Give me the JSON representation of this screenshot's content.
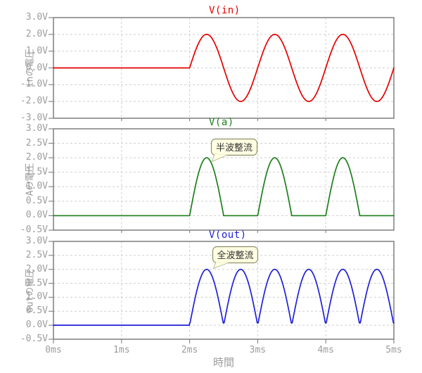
{
  "figure": {
    "background": "#ffffff",
    "frame_color": "#7f7f7f",
    "grid_color": "#cfcfcf",
    "tick_label_color": "#9c9c9c",
    "xlabel": "時間",
    "xticks": [
      "0ms",
      "1ms",
      "2ms",
      "3ms",
      "4ms",
      "5ms"
    ],
    "x_range_ms": [
      0,
      5
    ]
  },
  "annotation_style": {
    "background": "#ffffe2",
    "border": "#8f8f6b",
    "text_color": "#333333"
  },
  "chart_data": [
    {
      "type": "line",
      "title": "V(in)",
      "color": "#e60000",
      "ylabel": "inの電圧",
      "xlabel": "時間",
      "x_range_ms": [
        0,
        5
      ],
      "ylim": [
        -3.0,
        3.0
      ],
      "grid": true,
      "yticks": [
        {
          "v": 3.0,
          "label": "3.0V"
        },
        {
          "v": 2.0,
          "label": "2.0V"
        },
        {
          "v": 1.0,
          "label": "1.0V"
        },
        {
          "v": 0.0,
          "label": "0.0V"
        },
        {
          "v": -1.0,
          "label": "-1.0V"
        },
        {
          "v": -2.0,
          "label": "-2.0V"
        },
        {
          "v": -3.0,
          "label": "-3.0V"
        }
      ],
      "signal": {
        "kind": "sine",
        "description": "0V from 0ms to 2ms, then 2V-amplitude 1kHz sine (peaks +2V at 2.25/3.25/4.25ms, -2V at 2.75/3.75/4.75ms, 0V at 5ms)",
        "baseline_v": 0.0,
        "amplitude_v": 2.0,
        "period_ms": 1.0,
        "start_ms": 2.0
      },
      "annotation": null
    },
    {
      "type": "line",
      "title": "V(a)",
      "color": "#1e7e1e",
      "ylabel": "Aの電圧",
      "xlabel": "時間",
      "x_range_ms": [
        0,
        5
      ],
      "ylim": [
        -0.5,
        3.0
      ],
      "grid": true,
      "yticks": [
        {
          "v": 3.0,
          "label": "3.0V"
        },
        {
          "v": 2.5,
          "label": "2.5V"
        },
        {
          "v": 2.0,
          "label": "2.0V"
        },
        {
          "v": 1.5,
          "label": "1.5V"
        },
        {
          "v": 1.0,
          "label": "1.0V"
        },
        {
          "v": 0.5,
          "label": "0.5V"
        },
        {
          "v": 0.0,
          "label": "0.0V"
        },
        {
          "v": -0.5,
          "label": "-0.5V"
        }
      ],
      "signal": {
        "kind": "half_wave_rectified_sine",
        "description": "0V until 2ms, then half-wave rectified 2V sine: 2V-peak humps at 2.0-2.5, 3.0-3.5, 4.0-4.5ms, 0V between",
        "baseline_v": 0.0,
        "amplitude_v": 2.0,
        "period_ms": 1.0,
        "start_ms": 2.0
      },
      "annotation": {
        "text": "半波整流"
      }
    },
    {
      "type": "line",
      "title": "V(out)",
      "color": "#2020d8",
      "ylabel": "outの電圧",
      "xlabel": "時間",
      "x_range_ms": [
        0,
        5
      ],
      "ylim": [
        -0.5,
        3.0
      ],
      "grid": true,
      "yticks": [
        {
          "v": 3.0,
          "label": "3.0V"
        },
        {
          "v": 2.5,
          "label": "2.5V"
        },
        {
          "v": 2.0,
          "label": "2.0V"
        },
        {
          "v": 1.5,
          "label": "1.5V"
        },
        {
          "v": 1.0,
          "label": "1.0V"
        },
        {
          "v": 0.5,
          "label": "0.5V"
        },
        {
          "v": 0.0,
          "label": "0.0V"
        },
        {
          "v": -0.5,
          "label": "-0.5V"
        }
      ],
      "signal": {
        "kind": "full_wave_rectified_sine",
        "description": "0V until 2ms, then full-wave rectified 2V sine: 2V-peak humps every 0.5ms from 2ms to 5ms, dips to ~0.1V at cusps",
        "baseline_v": 0.0,
        "amplitude_v": 2.0,
        "period_ms": 1.0,
        "start_ms": 2.0,
        "dip_min_v": 0.08
      },
      "annotation": {
        "text": "全波整流"
      }
    }
  ]
}
